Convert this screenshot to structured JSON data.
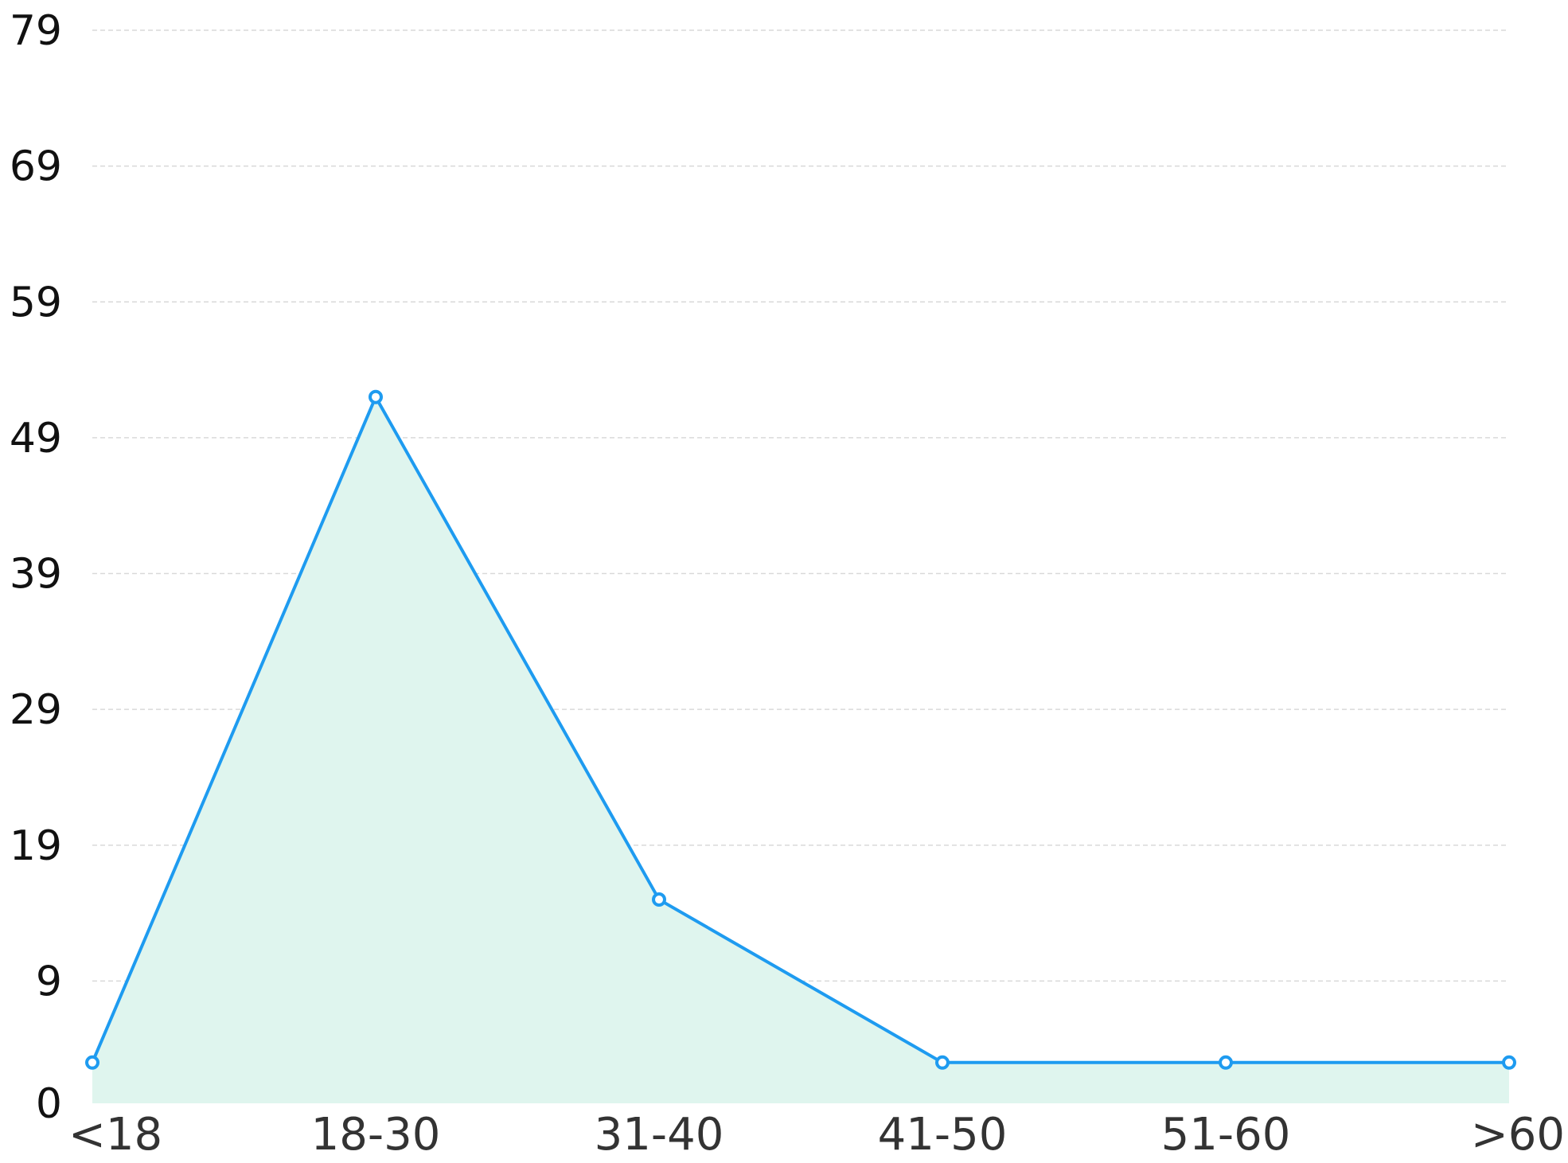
{
  "chart_data": {
    "type": "area",
    "categories": [
      "<18",
      "18-30",
      "31-40",
      "41-50",
      "51-60",
      ">60"
    ],
    "series": [
      {
        "values": [
          3,
          52,
          15,
          3,
          3,
          3
        ]
      }
    ],
    "y_ticks": [
      "79",
      "69",
      "59",
      "49",
      "39",
      "29",
      "19",
      "9",
      "0"
    ],
    "ylim": [
      0,
      79
    ],
    "grid": true,
    "legend": "none",
    "colors": {
      "line": "#1E9BF0",
      "fill": "#DFF5EE",
      "grid": "#D9D9D9",
      "marker_fill": "#FFFFFF"
    }
  }
}
